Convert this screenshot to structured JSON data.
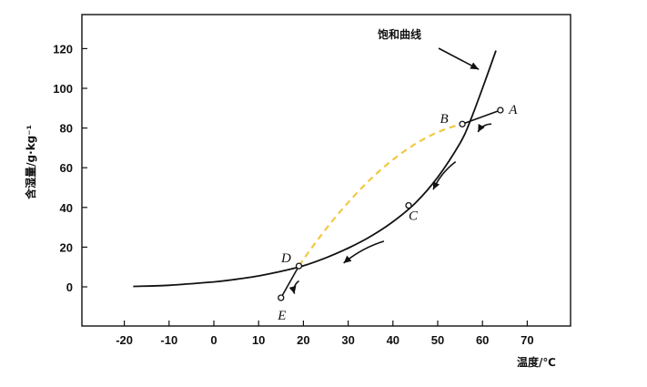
{
  "chart_data": {
    "type": "line",
    "title": "",
    "xlabel": "温度/℃",
    "ylabel": "含湿量/g·kg⁻¹",
    "xlim": [
      -29,
      79
    ],
    "ylim": [
      -20,
      133
    ],
    "xticks": [
      -20,
      -10,
      0,
      10,
      20,
      30,
      40,
      50,
      60,
      70
    ],
    "xtick_labels": [
      "-20",
      "-10",
      "0",
      "10",
      "20",
      "30",
      "40",
      "50",
      "60",
      "70"
    ],
    "yticks": [
      0,
      20,
      40,
      60,
      80,
      100,
      120
    ],
    "ytick_labels": [
      "0",
      "20",
      "40",
      "60",
      "80",
      "100",
      "120"
    ],
    "grid": false,
    "series": [
      {
        "name": "饱和曲线",
        "x": [
          -18,
          -10,
          0,
          5,
          10,
          15,
          20,
          25,
          30,
          35,
          40,
          45,
          50,
          55,
          57,
          60,
          63
        ],
        "y": [
          0.2,
          0.8,
          2.5,
          3.8,
          5.5,
          7.8,
          10.6,
          14.6,
          19.5,
          25.4,
          32.8,
          42.2,
          55.2,
          72.4,
          82,
          100,
          119
        ]
      }
    ],
    "process_lines": [
      {
        "from": "A",
        "to": "B"
      },
      {
        "from": "D",
        "to": "E"
      }
    ],
    "dashed_curve": {
      "from": "D",
      "to": "B",
      "control": [
        38,
        73
      ]
    },
    "points": [
      {
        "label": "A",
        "x": 64,
        "y": 89
      },
      {
        "label": "B",
        "x": 55.5,
        "y": 82
      },
      {
        "label": "C",
        "x": 43.5,
        "y": 41
      },
      {
        "label": "D",
        "x": 19,
        "y": 10.5
      },
      {
        "label": "E",
        "x": 15,
        "y": -5.5
      }
    ],
    "arrows": [
      {
        "from": [
          62,
          82
        ],
        "to": [
          59,
          78
        ]
      },
      {
        "from": [
          54,
          63
        ],
        "to": [
          49,
          49
        ]
      },
      {
        "from": [
          38,
          23
        ],
        "to": [
          29,
          12
        ]
      },
      {
        "from": [
          19,
          3
        ],
        "to": [
          18,
          -3.5
        ]
      }
    ],
    "callout": {
      "text": "饱和曲线",
      "target": [
        60,
        110
      ]
    }
  }
}
